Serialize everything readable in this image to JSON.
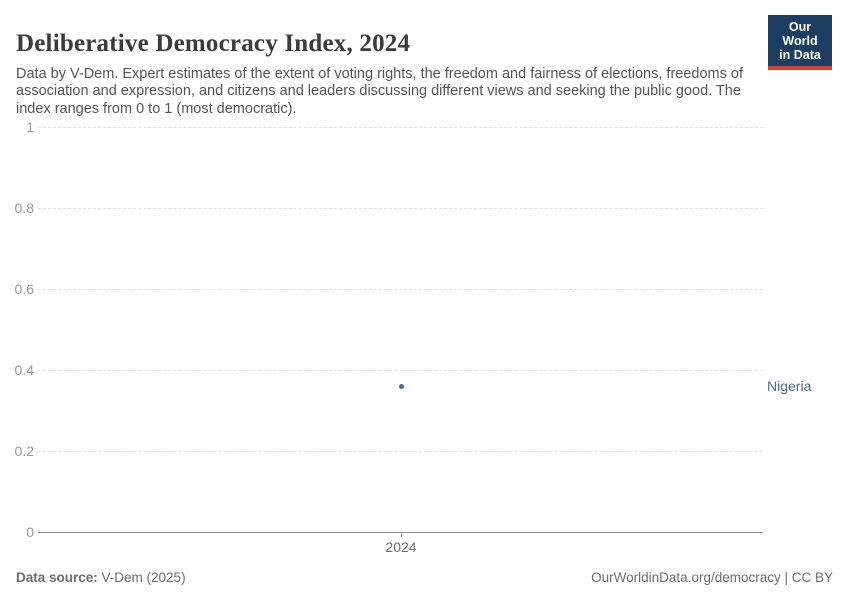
{
  "header": {
    "title": "Deliberative Democracy Index, 2024",
    "subtitle": "Data by V-Dem. Expert estimates of the extent of voting rights, the freedom and fairness of elections, freedoms of association and expression, and citizens and leaders discussing different views and seeking the public good. The index ranges from 0 to 1 (most democratic).",
    "logo": {
      "line1": "Our World",
      "line2": "in Data"
    }
  },
  "chart_data": {
    "type": "scatter",
    "title": "Deliberative Democracy Index, 2024",
    "x": [
      2024
    ],
    "xtick_labels": [
      "2024"
    ],
    "series": [
      {
        "name": "Nigeria",
        "values": [
          0.36
        ]
      }
    ],
    "xlabel": "",
    "ylabel": "",
    "ylim": [
      0,
      1
    ],
    "yticks": [
      0,
      0.2,
      0.4,
      0.6,
      0.8,
      1
    ],
    "ytick_labels": [
      "0",
      "0.2",
      "0.4",
      "0.6",
      "0.8",
      "1"
    ],
    "grid": "horizontal-dashed",
    "legend_position": "right-of-point"
  },
  "colors": {
    "point": "#3d6b9e",
    "entity_label": "#4c6a9c",
    "logo_navy": "#1d3d63",
    "logo_red": "#d8402f",
    "gridline": "#e0e0e0",
    "axis_line": "#8f8f8f",
    "tick_text": "#9a9a9a"
  },
  "footer": {
    "source_label": "Data source:",
    "source_value": " V-Dem (2025)",
    "rights": "OurWorldinData.org/democracy | CC BY"
  }
}
